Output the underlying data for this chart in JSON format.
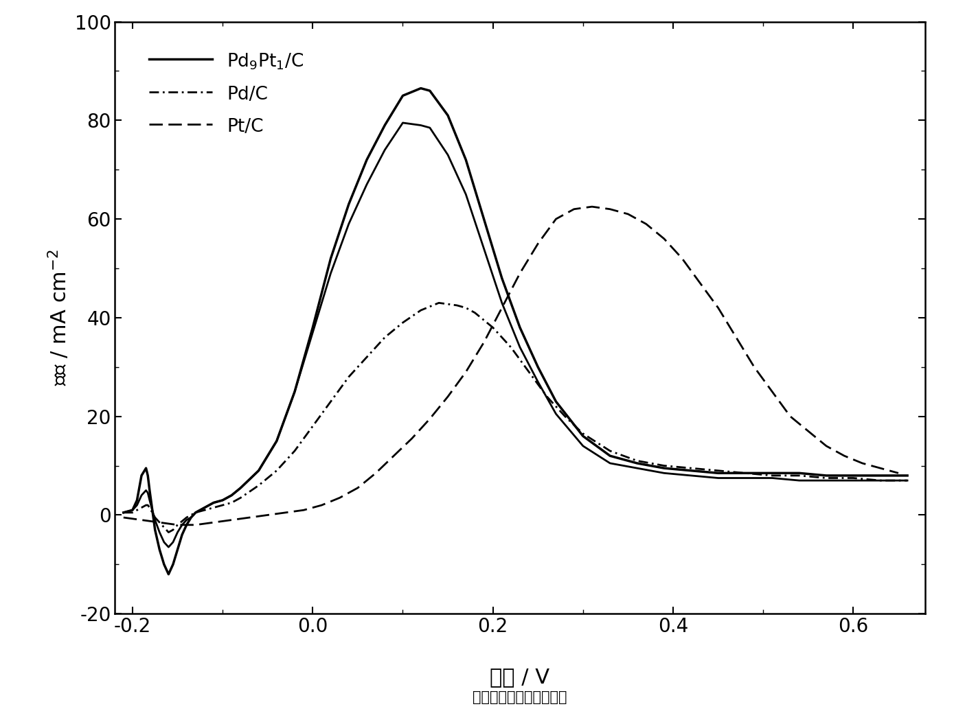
{
  "xlabel_main": "电位 / V",
  "xlabel_sub": "（相对于饱和甘汞电极）",
  "ylabel": "电流 / mA cm$^{-2}$",
  "xlim": [
    -0.22,
    0.68
  ],
  "ylim": [
    -20,
    100
  ],
  "xticks": [
    -0.2,
    0.0,
    0.2,
    0.4,
    0.6
  ],
  "yticks": [
    -20,
    0,
    20,
    40,
    60,
    80,
    100
  ],
  "background_color": "white",
  "pd9pt1_outer_x": [
    -0.21,
    -0.2,
    -0.195,
    -0.19,
    -0.185,
    -0.183,
    -0.181,
    -0.178,
    -0.175,
    -0.17,
    -0.165,
    -0.16,
    -0.155,
    -0.15,
    -0.145,
    -0.14,
    -0.135,
    -0.13,
    -0.12,
    -0.11,
    -0.1,
    -0.09,
    -0.08,
    -0.06,
    -0.04,
    -0.02,
    0.0,
    0.02,
    0.04,
    0.06,
    0.08,
    0.1,
    0.12,
    0.13,
    0.15,
    0.17,
    0.19,
    0.21,
    0.23,
    0.25,
    0.27,
    0.3,
    0.33,
    0.36,
    0.39,
    0.42,
    0.45,
    0.48,
    0.51,
    0.54,
    0.57,
    0.6,
    0.63,
    0.66
  ],
  "pd9pt1_outer_y": [
    0.5,
    1.0,
    3.0,
    8.0,
    9.5,
    8.0,
    5.0,
    1.0,
    -3.0,
    -7.0,
    -10.0,
    -12.0,
    -10.0,
    -7.0,
    -4.0,
    -2.0,
    -0.5,
    0.5,
    1.5,
    2.5,
    3.0,
    4.0,
    5.5,
    9.0,
    15.0,
    25.0,
    38.0,
    52.0,
    63.0,
    72.0,
    79.0,
    85.0,
    86.5,
    86.0,
    81.0,
    72.0,
    60.0,
    48.0,
    38.0,
    30.0,
    23.0,
    16.0,
    12.0,
    10.5,
    9.5,
    9.0,
    8.5,
    8.5,
    8.5,
    8.5,
    8.0,
    8.0,
    8.0,
    8.0
  ],
  "pd9pt1_inner_x": [
    -0.21,
    -0.2,
    -0.195,
    -0.19,
    -0.185,
    -0.183,
    -0.181,
    -0.178,
    -0.175,
    -0.17,
    -0.165,
    -0.16,
    -0.155,
    -0.15,
    -0.145,
    -0.14,
    -0.135,
    -0.13,
    -0.12,
    -0.11,
    -0.1,
    -0.09,
    -0.08,
    -0.06,
    -0.04,
    -0.02,
    0.0,
    0.02,
    0.04,
    0.06,
    0.08,
    0.1,
    0.12,
    0.13,
    0.15,
    0.17,
    0.19,
    0.21,
    0.23,
    0.25,
    0.27,
    0.3,
    0.33,
    0.36,
    0.39,
    0.42,
    0.45,
    0.48,
    0.51,
    0.54,
    0.57,
    0.6,
    0.63,
    0.66
  ],
  "pd9pt1_inner_y": [
    0.5,
    1.0,
    2.0,
    4.0,
    5.0,
    4.5,
    3.0,
    1.0,
    -1.0,
    -3.5,
    -5.5,
    -6.5,
    -5.5,
    -3.5,
    -2.0,
    -1.0,
    -0.5,
    0.5,
    1.5,
    2.5,
    3.0,
    4.0,
    5.5,
    9.0,
    15.0,
    25.0,
    37.0,
    49.0,
    59.0,
    67.0,
    74.0,
    79.5,
    79.0,
    78.5,
    73.0,
    65.0,
    54.0,
    43.0,
    34.0,
    27.0,
    20.5,
    14.0,
    10.5,
    9.5,
    8.5,
    8.0,
    7.5,
    7.5,
    7.5,
    7.0,
    7.0,
    7.0,
    7.0,
    7.0
  ],
  "pdc_x": [
    -0.21,
    -0.2,
    -0.195,
    -0.19,
    -0.185,
    -0.183,
    -0.181,
    -0.178,
    -0.175,
    -0.17,
    -0.165,
    -0.16,
    -0.155,
    -0.15,
    -0.14,
    -0.13,
    -0.12,
    -0.11,
    -0.1,
    -0.09,
    -0.08,
    -0.06,
    -0.04,
    -0.02,
    0.0,
    0.02,
    0.04,
    0.06,
    0.08,
    0.1,
    0.12,
    0.14,
    0.16,
    0.17,
    0.18,
    0.2,
    0.22,
    0.24,
    0.26,
    0.28,
    0.3,
    0.33,
    0.36,
    0.39,
    0.42,
    0.45,
    0.48,
    0.51,
    0.54,
    0.57,
    0.6,
    0.63,
    0.66
  ],
  "pdc_y": [
    0.5,
    0.5,
    1.0,
    1.5,
    2.0,
    2.0,
    1.5,
    0.5,
    -0.5,
    -1.5,
    -2.5,
    -3.5,
    -3.0,
    -2.0,
    -0.5,
    0.5,
    1.0,
    1.5,
    2.0,
    2.5,
    3.5,
    6.0,
    9.0,
    13.0,
    18.0,
    23.0,
    28.0,
    32.0,
    36.0,
    39.0,
    41.5,
    43.0,
    42.5,
    42.0,
    41.0,
    38.0,
    34.0,
    29.0,
    24.0,
    20.0,
    16.5,
    13.0,
    11.0,
    10.0,
    9.5,
    9.0,
    8.5,
    8.0,
    8.0,
    7.5,
    7.5,
    7.0,
    7.0
  ],
  "ptc_x": [
    -0.21,
    -0.19,
    -0.17,
    -0.15,
    -0.13,
    -0.11,
    -0.09,
    -0.07,
    -0.05,
    -0.03,
    -0.01,
    0.01,
    0.03,
    0.05,
    0.07,
    0.09,
    0.11,
    0.13,
    0.15,
    0.17,
    0.19,
    0.21,
    0.23,
    0.25,
    0.27,
    0.29,
    0.31,
    0.33,
    0.35,
    0.37,
    0.38,
    0.39,
    0.4,
    0.41,
    0.43,
    0.45,
    0.47,
    0.49,
    0.51,
    0.53,
    0.55,
    0.57,
    0.59,
    0.61,
    0.63,
    0.65
  ],
  "ptc_y": [
    -0.5,
    -1.0,
    -1.5,
    -2.0,
    -2.0,
    -1.5,
    -1.0,
    -0.5,
    0.0,
    0.5,
    1.0,
    2.0,
    3.5,
    5.5,
    8.5,
    12.0,
    15.5,
    19.5,
    24.0,
    29.0,
    35.0,
    42.0,
    49.0,
    55.0,
    60.0,
    62.0,
    62.5,
    62.0,
    61.0,
    59.0,
    57.5,
    56.0,
    54.0,
    52.0,
    47.0,
    42.0,
    36.0,
    30.0,
    25.0,
    20.0,
    17.0,
    14.0,
    12.0,
    10.5,
    9.5,
    8.5
  ]
}
